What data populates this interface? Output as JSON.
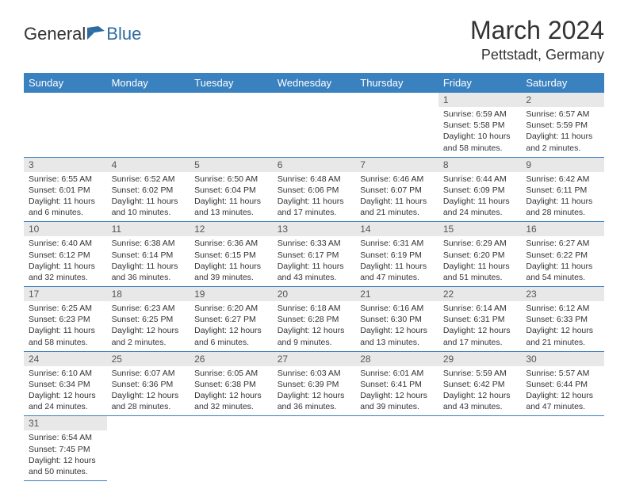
{
  "logo": {
    "part1": "General",
    "part2": "Blue"
  },
  "title": "March 2024",
  "subtitle": "Pettstadt, Germany",
  "colors": {
    "header_bg": "#3a81c0",
    "header_text": "#ffffff",
    "daynum_bg": "#e8e8e8",
    "border": "#3a81c0",
    "logo_blue": "#2d6ca2"
  },
  "daysOfWeek": [
    "Sunday",
    "Monday",
    "Tuesday",
    "Wednesday",
    "Thursday",
    "Friday",
    "Saturday"
  ],
  "weeks": [
    [
      {
        "empty": true
      },
      {
        "empty": true
      },
      {
        "empty": true
      },
      {
        "empty": true
      },
      {
        "empty": true
      },
      {
        "n": "1",
        "sunrise": "Sunrise: 6:59 AM",
        "sunset": "Sunset: 5:58 PM",
        "daylight": "Daylight: 10 hours and 58 minutes."
      },
      {
        "n": "2",
        "sunrise": "Sunrise: 6:57 AM",
        "sunset": "Sunset: 5:59 PM",
        "daylight": "Daylight: 11 hours and 2 minutes."
      }
    ],
    [
      {
        "n": "3",
        "sunrise": "Sunrise: 6:55 AM",
        "sunset": "Sunset: 6:01 PM",
        "daylight": "Daylight: 11 hours and 6 minutes."
      },
      {
        "n": "4",
        "sunrise": "Sunrise: 6:52 AM",
        "sunset": "Sunset: 6:02 PM",
        "daylight": "Daylight: 11 hours and 10 minutes."
      },
      {
        "n": "5",
        "sunrise": "Sunrise: 6:50 AM",
        "sunset": "Sunset: 6:04 PM",
        "daylight": "Daylight: 11 hours and 13 minutes."
      },
      {
        "n": "6",
        "sunrise": "Sunrise: 6:48 AM",
        "sunset": "Sunset: 6:06 PM",
        "daylight": "Daylight: 11 hours and 17 minutes."
      },
      {
        "n": "7",
        "sunrise": "Sunrise: 6:46 AM",
        "sunset": "Sunset: 6:07 PM",
        "daylight": "Daylight: 11 hours and 21 minutes."
      },
      {
        "n": "8",
        "sunrise": "Sunrise: 6:44 AM",
        "sunset": "Sunset: 6:09 PM",
        "daylight": "Daylight: 11 hours and 24 minutes."
      },
      {
        "n": "9",
        "sunrise": "Sunrise: 6:42 AM",
        "sunset": "Sunset: 6:11 PM",
        "daylight": "Daylight: 11 hours and 28 minutes."
      }
    ],
    [
      {
        "n": "10",
        "sunrise": "Sunrise: 6:40 AM",
        "sunset": "Sunset: 6:12 PM",
        "daylight": "Daylight: 11 hours and 32 minutes."
      },
      {
        "n": "11",
        "sunrise": "Sunrise: 6:38 AM",
        "sunset": "Sunset: 6:14 PM",
        "daylight": "Daylight: 11 hours and 36 minutes."
      },
      {
        "n": "12",
        "sunrise": "Sunrise: 6:36 AM",
        "sunset": "Sunset: 6:15 PM",
        "daylight": "Daylight: 11 hours and 39 minutes."
      },
      {
        "n": "13",
        "sunrise": "Sunrise: 6:33 AM",
        "sunset": "Sunset: 6:17 PM",
        "daylight": "Daylight: 11 hours and 43 minutes."
      },
      {
        "n": "14",
        "sunrise": "Sunrise: 6:31 AM",
        "sunset": "Sunset: 6:19 PM",
        "daylight": "Daylight: 11 hours and 47 minutes."
      },
      {
        "n": "15",
        "sunrise": "Sunrise: 6:29 AM",
        "sunset": "Sunset: 6:20 PM",
        "daylight": "Daylight: 11 hours and 51 minutes."
      },
      {
        "n": "16",
        "sunrise": "Sunrise: 6:27 AM",
        "sunset": "Sunset: 6:22 PM",
        "daylight": "Daylight: 11 hours and 54 minutes."
      }
    ],
    [
      {
        "n": "17",
        "sunrise": "Sunrise: 6:25 AM",
        "sunset": "Sunset: 6:23 PM",
        "daylight": "Daylight: 11 hours and 58 minutes."
      },
      {
        "n": "18",
        "sunrise": "Sunrise: 6:23 AM",
        "sunset": "Sunset: 6:25 PM",
        "daylight": "Daylight: 12 hours and 2 minutes."
      },
      {
        "n": "19",
        "sunrise": "Sunrise: 6:20 AM",
        "sunset": "Sunset: 6:27 PM",
        "daylight": "Daylight: 12 hours and 6 minutes."
      },
      {
        "n": "20",
        "sunrise": "Sunrise: 6:18 AM",
        "sunset": "Sunset: 6:28 PM",
        "daylight": "Daylight: 12 hours and 9 minutes."
      },
      {
        "n": "21",
        "sunrise": "Sunrise: 6:16 AM",
        "sunset": "Sunset: 6:30 PM",
        "daylight": "Daylight: 12 hours and 13 minutes."
      },
      {
        "n": "22",
        "sunrise": "Sunrise: 6:14 AM",
        "sunset": "Sunset: 6:31 PM",
        "daylight": "Daylight: 12 hours and 17 minutes."
      },
      {
        "n": "23",
        "sunrise": "Sunrise: 6:12 AM",
        "sunset": "Sunset: 6:33 PM",
        "daylight": "Daylight: 12 hours and 21 minutes."
      }
    ],
    [
      {
        "n": "24",
        "sunrise": "Sunrise: 6:10 AM",
        "sunset": "Sunset: 6:34 PM",
        "daylight": "Daylight: 12 hours and 24 minutes."
      },
      {
        "n": "25",
        "sunrise": "Sunrise: 6:07 AM",
        "sunset": "Sunset: 6:36 PM",
        "daylight": "Daylight: 12 hours and 28 minutes."
      },
      {
        "n": "26",
        "sunrise": "Sunrise: 6:05 AM",
        "sunset": "Sunset: 6:38 PM",
        "daylight": "Daylight: 12 hours and 32 minutes."
      },
      {
        "n": "27",
        "sunrise": "Sunrise: 6:03 AM",
        "sunset": "Sunset: 6:39 PM",
        "daylight": "Daylight: 12 hours and 36 minutes."
      },
      {
        "n": "28",
        "sunrise": "Sunrise: 6:01 AM",
        "sunset": "Sunset: 6:41 PM",
        "daylight": "Daylight: 12 hours and 39 minutes."
      },
      {
        "n": "29",
        "sunrise": "Sunrise: 5:59 AM",
        "sunset": "Sunset: 6:42 PM",
        "daylight": "Daylight: 12 hours and 43 minutes."
      },
      {
        "n": "30",
        "sunrise": "Sunrise: 5:57 AM",
        "sunset": "Sunset: 6:44 PM",
        "daylight": "Daylight: 12 hours and 47 minutes."
      }
    ],
    [
      {
        "n": "31",
        "sunrise": "Sunrise: 6:54 AM",
        "sunset": "Sunset: 7:45 PM",
        "daylight": "Daylight: 12 hours and 50 minutes."
      },
      {
        "empty": true
      },
      {
        "empty": true
      },
      {
        "empty": true
      },
      {
        "empty": true
      },
      {
        "empty": true
      },
      {
        "empty": true
      }
    ]
  ]
}
